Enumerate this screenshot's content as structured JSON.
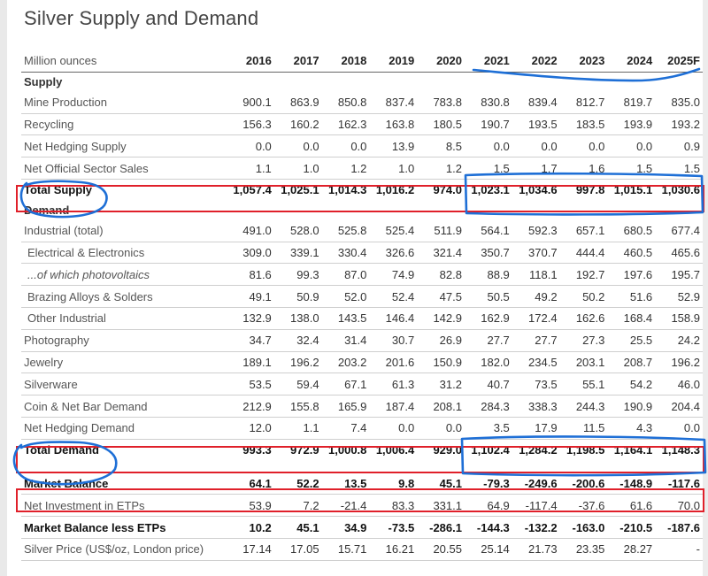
{
  "title": "Silver Supply and Demand",
  "header": {
    "label": "Million ounces",
    "years": [
      "2016",
      "2017",
      "2018",
      "2019",
      "2020",
      "2021",
      "2022",
      "2023",
      "2024",
      "2025F"
    ]
  },
  "supply_heading": "Supply",
  "demand_heading": "Demand",
  "supply_rows": [
    {
      "label": "Mine Production",
      "values": [
        "900.1",
        "863.9",
        "850.8",
        "837.4",
        "783.8",
        "830.8",
        "839.4",
        "812.7",
        "819.7",
        "835.0"
      ]
    },
    {
      "label": "Recycling",
      "values": [
        "156.3",
        "160.2",
        "162.3",
        "163.8",
        "180.5",
        "190.7",
        "193.5",
        "183.5",
        "193.9",
        "193.2"
      ]
    },
    {
      "label": "Net Hedging Supply",
      "values": [
        "0.0",
        "0.0",
        "0.0",
        "13.9",
        "8.5",
        "0.0",
        "0.0",
        "0.0",
        "0.0",
        "0.9"
      ]
    },
    {
      "label": "Net Official Sector Sales",
      "values": [
        "1.1",
        "1.0",
        "1.2",
        "1.0",
        "1.2",
        "1.5",
        "1.7",
        "1.6",
        "1.5",
        "1.5"
      ]
    }
  ],
  "total_supply": {
    "label": "Total Supply",
    "values": [
      "1,057.4",
      "1,025.1",
      "1,014.3",
      "1,016.2",
      "974.0",
      "1,023.1",
      "1,034.6",
      "997.8",
      "1,015.1",
      "1,030.6"
    ]
  },
  "demand_rows": [
    {
      "label": "Industrial (total)",
      "values": [
        "491.0",
        "528.0",
        "525.8",
        "525.4",
        "511.9",
        "564.1",
        "592.3",
        "657.1",
        "680.5",
        "677.4"
      ]
    },
    {
      "label": "Electrical & Electronics",
      "values": [
        "309.0",
        "339.1",
        "330.4",
        "326.6",
        "321.4",
        "350.7",
        "370.7",
        "444.4",
        "460.5",
        "465.6"
      ]
    },
    {
      "label": "...of which photovoltaics",
      "values": [
        "81.6",
        "99.3",
        "87.0",
        "74.9",
        "82.8",
        "88.9",
        "118.1",
        "192.7",
        "197.6",
        "195.7"
      ]
    },
    {
      "label": "Brazing Alloys & Solders",
      "values": [
        "49.1",
        "50.9",
        "52.0",
        "52.4",
        "47.5",
        "50.5",
        "49.2",
        "50.2",
        "51.6",
        "52.9"
      ]
    },
    {
      "label": "Other Industrial",
      "values": [
        "132.9",
        "138.0",
        "143.5",
        "146.4",
        "142.9",
        "162.9",
        "172.4",
        "162.6",
        "168.4",
        "158.9"
      ]
    },
    {
      "label": "Photography",
      "values": [
        "34.7",
        "32.4",
        "31.4",
        "30.7",
        "26.9",
        "27.7",
        "27.7",
        "27.3",
        "25.5",
        "24.2"
      ]
    },
    {
      "label": "Jewelry",
      "values": [
        "189.1",
        "196.2",
        "203.2",
        "201.6",
        "150.9",
        "182.0",
        "234.5",
        "203.1",
        "208.7",
        "196.2"
      ]
    },
    {
      "label": "Silverware",
      "values": [
        "53.5",
        "59.4",
        "67.1",
        "61.3",
        "31.2",
        "40.7",
        "73.5",
        "55.1",
        "54.2",
        "46.0"
      ]
    },
    {
      "label": "Coin & Net Bar Demand",
      "values": [
        "212.9",
        "155.8",
        "165.9",
        "187.4",
        "208.1",
        "284.3",
        "338.3",
        "244.3",
        "190.9",
        "204.4"
      ]
    },
    {
      "label": "Net Hedging Demand",
      "values": [
        "12.0",
        "1.1",
        "7.4",
        "0.0",
        "0.0",
        "3.5",
        "17.9",
        "11.5",
        "4.3",
        "0.0"
      ]
    }
  ],
  "total_demand": {
    "label": "Total Demand",
    "values": [
      "993.3",
      "972.9",
      "1,000.8",
      "1,006.4",
      "929.0",
      "1,102.4",
      "1,284.2",
      "1,198.5",
      "1,164.1",
      "1,148.3"
    ]
  },
  "bottom_rows": [
    {
      "label": "Market Balance",
      "values": [
        "64.1",
        "52.2",
        "13.5",
        "9.8",
        "45.1",
        "-79.3",
        "-249.6",
        "-200.6",
        "-148.9",
        "-117.6"
      ]
    },
    {
      "label": "Net Investment in ETPs",
      "values": [
        "53.9",
        "7.2",
        "-21.4",
        "83.3",
        "331.1",
        "64.9",
        "-117.4",
        "-37.6",
        "61.6",
        "70.0"
      ]
    },
    {
      "label": "Market Balance less ETPs",
      "values": [
        "10.2",
        "45.1",
        "34.9",
        "-73.5",
        "-286.1",
        "-144.3",
        "-132.2",
        "-163.0",
        "-210.5",
        "-187.6"
      ]
    },
    {
      "label": "Silver Price (US$/oz, London price)",
      "values": [
        "17.14",
        "17.05",
        "15.71",
        "16.21",
        "20.55",
        "25.14",
        "21.73",
        "23.35",
        "28.27",
        "-"
      ]
    }
  ],
  "colors": {
    "red_annotation": "#e0202a",
    "blue_annotation": "#1e6fd6",
    "rule": "#cfcfcf"
  }
}
